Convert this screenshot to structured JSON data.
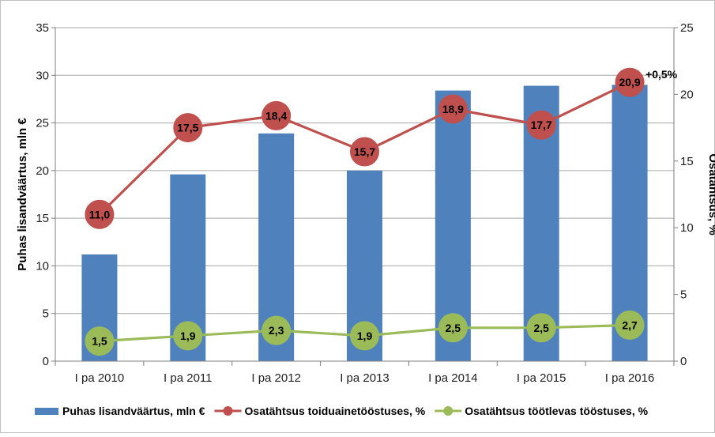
{
  "chart_data": {
    "type": "bar",
    "categories": [
      "I pa 2010",
      "I pa 2011",
      "I pa 2012",
      "I pa 2013",
      "I pa 2014",
      "I pa 2015",
      "I pa 2016"
    ],
    "series": [
      {
        "name": "Puhas lisandväärtus,  mln €",
        "type": "bar",
        "axis": "left",
        "color": "#4F81BD",
        "values": [
          11.2,
          19.6,
          23.9,
          20.0,
          28.4,
          28.9,
          29.0
        ]
      },
      {
        "name": "Osatähtsus toiduainetööstuses, %",
        "type": "line",
        "axis": "right",
        "color": "#C0504D",
        "values": [
          11.0,
          17.5,
          18.4,
          15.7,
          18.9,
          17.7,
          20.9
        ],
        "labels": [
          "11,0",
          "17,5",
          "18,4",
          "15,7",
          "18,9",
          "17,7",
          "20,9"
        ]
      },
      {
        "name": "Osatähtsus töötlevas tööstuses, %",
        "type": "line",
        "axis": "right",
        "color": "#9BBB59",
        "values": [
          1.5,
          1.9,
          2.3,
          1.9,
          2.5,
          2.5,
          2.7
        ],
        "labels": [
          "1,5",
          "1,9",
          "2,3",
          "1,9",
          "2,5",
          "2,5",
          "2,7"
        ]
      }
    ],
    "ylabel": "Puhas lisandväärtus, mln €",
    "y2label": "Osatähtsus, %",
    "ylim": [
      0,
      35
    ],
    "y2lim": [
      0,
      25
    ],
    "yticks": [
      "0",
      "5",
      "10",
      "15",
      "20",
      "25",
      "30",
      "35"
    ],
    "y2ticks": [
      "0",
      "5",
      "10",
      "15",
      "20",
      "25"
    ],
    "annotation": "+0,5%",
    "grid": true,
    "legend_position": "bottom"
  }
}
